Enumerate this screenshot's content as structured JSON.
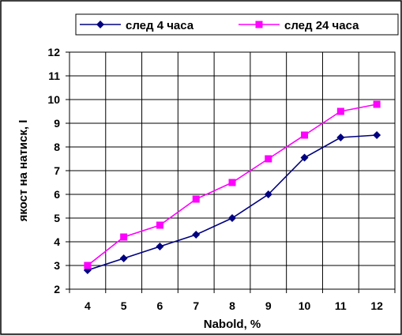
{
  "chart_data": {
    "type": "line",
    "title": "",
    "xlabel": "Nabold, %",
    "ylabel": "якост на натиск, I",
    "x": [
      4,
      5,
      6,
      7,
      8,
      9,
      10,
      11,
      12
    ],
    "ylim": [
      2,
      12
    ],
    "yticks": [
      2,
      3,
      4,
      5,
      6,
      7,
      8,
      9,
      10,
      11,
      12
    ],
    "grid": true,
    "legend_position": "top",
    "series": [
      {
        "name": "след 4 часа",
        "color": "#000080",
        "marker": "diamond",
        "values": [
          2.8,
          3.3,
          3.8,
          4.3,
          5.0,
          6.0,
          7.55,
          8.4,
          8.5
        ]
      },
      {
        "name": "след 24 часа",
        "color": "#ff00ff",
        "marker": "square",
        "values": [
          3.0,
          4.2,
          4.7,
          5.8,
          6.5,
          7.5,
          8.5,
          9.5,
          9.8
        ]
      }
    ]
  }
}
